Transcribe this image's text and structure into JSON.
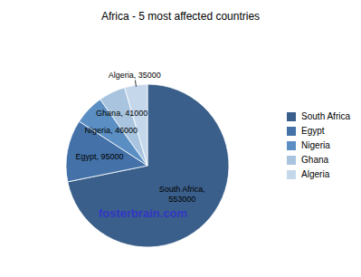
{
  "chart_data": {
    "type": "pie",
    "title": "Africa - 5 most affected countries",
    "categories": [
      "South Africa",
      "Egypt",
      "Nigeria",
      "Ghana",
      "Algeria"
    ],
    "values": [
      553000,
      95000,
      46000,
      41000,
      35000
    ],
    "colors": [
      "#3a5f8a",
      "#4472a8",
      "#5b8fc4",
      "#a8c4de",
      "#c5d8eb"
    ],
    "data_labels": true,
    "value_labels": [
      "South Africa,\n553000",
      "Egypt, 95000",
      "Nigeria, 46000",
      "Ghana, 41000",
      "Algeria, 35000"
    ],
    "legend": "right",
    "annotations": [
      {
        "text": "fosterbrain.com",
        "color": "#3333cc"
      }
    ]
  }
}
